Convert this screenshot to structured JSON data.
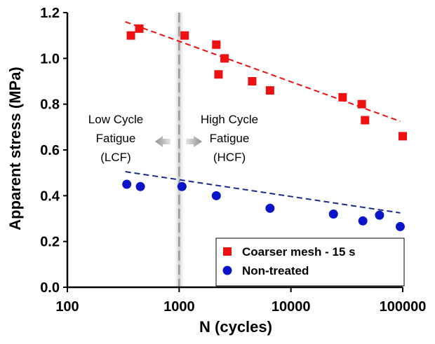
{
  "chart_data": {
    "type": "scatter",
    "title": "",
    "xlabel": "N (cycles)",
    "ylabel": "Apparent stress (MPa)",
    "xscale": "log",
    "xlim": [
      100,
      100000
    ],
    "ylim": [
      0,
      1.2
    ],
    "x_ticks": [
      100,
      1000,
      10000,
      100000
    ],
    "x_tick_labels": [
      "100",
      "1000",
      "10000",
      "100000"
    ],
    "y_ticks": [
      0,
      0.2,
      0.4,
      0.6,
      0.8,
      1.0,
      1.2
    ],
    "y_tick_labels": [
      "0.0",
      "0.2",
      "0.4",
      "0.6",
      "0.8",
      "1.0",
      "1.2"
    ],
    "grid": false,
    "legend_position": "bottom-right",
    "series": [
      {
        "name": "Coarser mesh - 15 s",
        "marker": "square",
        "color": "#ee1111",
        "points": [
          {
            "x": 370,
            "y": 1.1
          },
          {
            "x": 440,
            "y": 1.13
          },
          {
            "x": 1120,
            "y": 1.1
          },
          {
            "x": 2150,
            "y": 1.06
          },
          {
            "x": 2250,
            "y": 0.93
          },
          {
            "x": 2550,
            "y": 1.0
          },
          {
            "x": 4500,
            "y": 0.9
          },
          {
            "x": 6500,
            "y": 0.86
          },
          {
            "x": 29000,
            "y": 0.83
          },
          {
            "x": 43000,
            "y": 0.8
          },
          {
            "x": 46000,
            "y": 0.73
          },
          {
            "x": 100000,
            "y": 0.66
          }
        ],
        "trendline": {
          "x": [
            330,
            95000
          ],
          "y": [
            1.16,
            0.725
          ],
          "color": "#ee1111",
          "style": "dashed"
        }
      },
      {
        "name": "Non-treated",
        "marker": "circle",
        "color": "#0a14c8",
        "points": [
          {
            "x": 340,
            "y": 0.45
          },
          {
            "x": 450,
            "y": 0.44
          },
          {
            "x": 1060,
            "y": 0.44
          },
          {
            "x": 2150,
            "y": 0.4
          },
          {
            "x": 6500,
            "y": 0.345
          },
          {
            "x": 24000,
            "y": 0.32
          },
          {
            "x": 44000,
            "y": 0.29
          },
          {
            "x": 62000,
            "y": 0.315
          },
          {
            "x": 95000,
            "y": 0.265
          }
        ],
        "trendline": {
          "x": [
            330,
            95000
          ],
          "y": [
            0.505,
            0.325
          ],
          "color": "#1a2a8a",
          "style": "dashed"
        }
      }
    ],
    "annotations": {
      "divider_x": 1000,
      "lcf": {
        "lines": [
          "Low Cycle",
          "Fatigue",
          "(LCF)"
        ],
        "arrow": "left"
      },
      "hcf": {
        "lines": [
          "High Cycle",
          "Fatigue",
          "(HCF)"
        ],
        "arrow": "right"
      }
    },
    "colors": {
      "axis": "#000000",
      "divider": "#999999",
      "arrow": "#aaaaaa"
    }
  }
}
